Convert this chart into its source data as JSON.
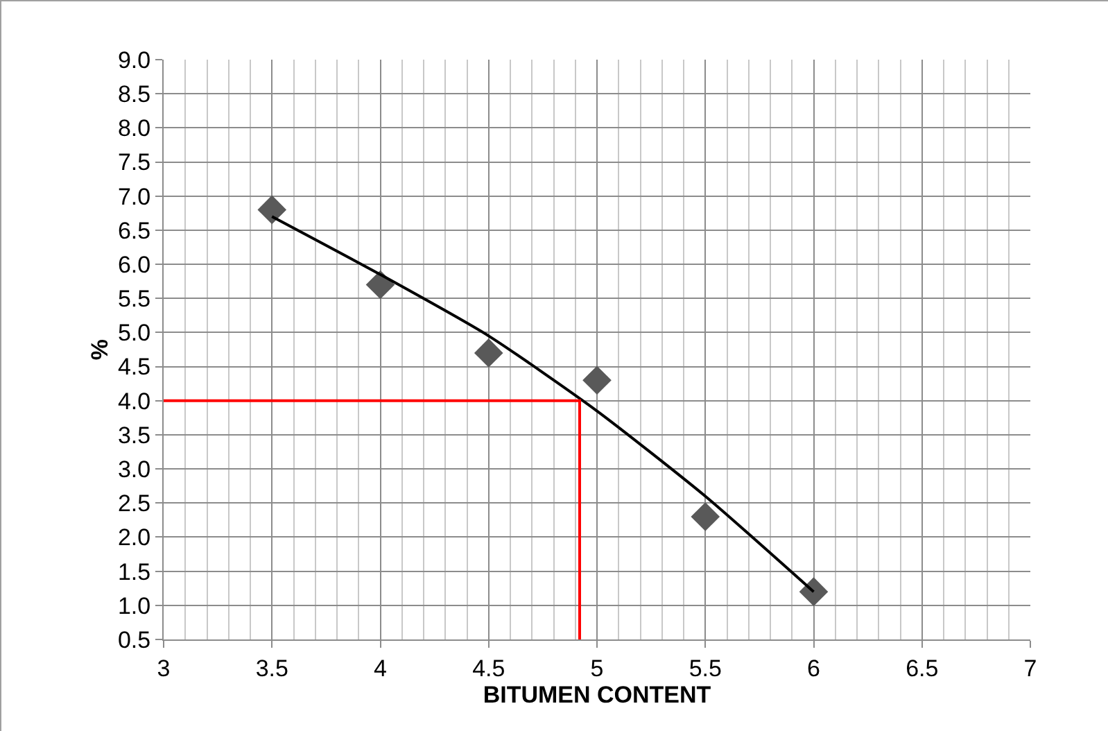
{
  "chart_data": {
    "type": "scatter",
    "xlabel": "BITUMEN CONTENT",
    "ylabel": "%",
    "xlim": [
      3,
      7
    ],
    "xticks": [
      3,
      3.5,
      4,
      4.5,
      5,
      5.5,
      6,
      6.5,
      7
    ],
    "ylim": [
      0.5,
      9
    ],
    "yticks": [
      {
        "value": 0.5,
        "label": "0.5"
      },
      {
        "value": 1,
        "label": "1.0"
      },
      {
        "value": 1.5,
        "label": "1.5"
      },
      {
        "value": 2,
        "label": "2.0"
      },
      {
        "value": 2.5,
        "label": "2.5"
      },
      {
        "value": 3,
        "label": "3.0"
      },
      {
        "value": 3.5,
        "label": "3.5"
      },
      {
        "value": 4,
        "label": "4.0"
      },
      {
        "value": 4.5,
        "label": "4.5"
      },
      {
        "value": 5,
        "label": "5.0"
      },
      {
        "value": 5.5,
        "label": "5.5"
      },
      {
        "value": 6,
        "label": "6.0"
      },
      {
        "value": 6.5,
        "label": "6.5"
      },
      {
        "value": 7,
        "label": "7.0"
      },
      {
        "value": 7.5,
        "label": "7.5"
      },
      {
        "value": 8,
        "label": "8.0"
      },
      {
        "value": 8.5,
        "label": "8.5"
      },
      {
        "value": 9,
        "label": "9.0"
      }
    ],
    "grid": true,
    "x": [
      3.5,
      4,
      4.5,
      5,
      5.5,
      6
    ],
    "series": [
      {
        "color": "#595959",
        "marker": "diamond",
        "values": [
          6.8,
          5.7,
          4.7,
          4.3,
          2.3,
          1.2
        ]
      },
      {
        "type": "line",
        "color": "#000000",
        "marker": "none",
        "x": [
          3.5,
          4,
          4.5,
          5,
          5.5,
          6
        ],
        "values": [
          6.7,
          5.85,
          4.95,
          3.85,
          2.6,
          1.2
        ]
      },
      {
        "type": "line",
        "color": "#ff0000",
        "marker": "none",
        "x": [
          3,
          4.92,
          4.92
        ],
        "values": [
          4,
          4,
          0.5
        ]
      }
    ]
  }
}
